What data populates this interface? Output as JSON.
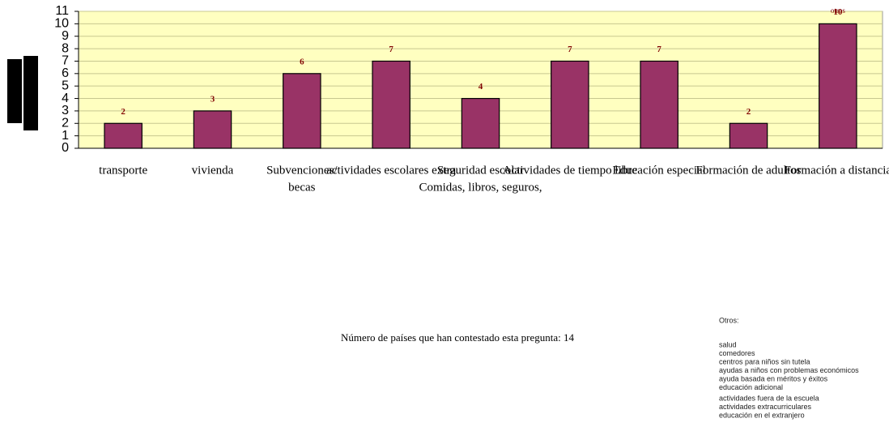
{
  "chart_data": {
    "type": "bar",
    "categories": [
      [
        "transporte"
      ],
      [
        "vivienda"
      ],
      [
        "Subvenciones/",
        "becas"
      ],
      [
        "actividades escolares extra"
      ],
      [
        "Seguridad escolar",
        "Comidas, libros, seguros,"
      ],
      [
        "Actividades de tiempo libre"
      ],
      [
        "Educación especial"
      ],
      [
        "Formación de adultos"
      ],
      [
        "Formación a distancia"
      ]
    ],
    "values": [
      2,
      3,
      6,
      7,
      4,
      7,
      7,
      2,
      10
    ],
    "color": "#993366",
    "ylim": [
      0,
      11
    ],
    "yticks": [
      0,
      1,
      2,
      3,
      4,
      5,
      6,
      7,
      8,
      9,
      10,
      11
    ],
    "grid": true,
    "annotation": "otros"
  },
  "footnote": "Número de países que han contestado esta pregunta: 14",
  "notes": {
    "title": "Otros:",
    "items": [
      "salud",
      "comedores",
      "centros para niños sin tutela",
      "ayudas a niños con problemas económicos",
      "ayuda basada en méritos y éxitos",
      "educación adicional",
      "actividades fuera de la escuela",
      "actividades extracurriculares",
      "educación en el extranjero"
    ]
  }
}
